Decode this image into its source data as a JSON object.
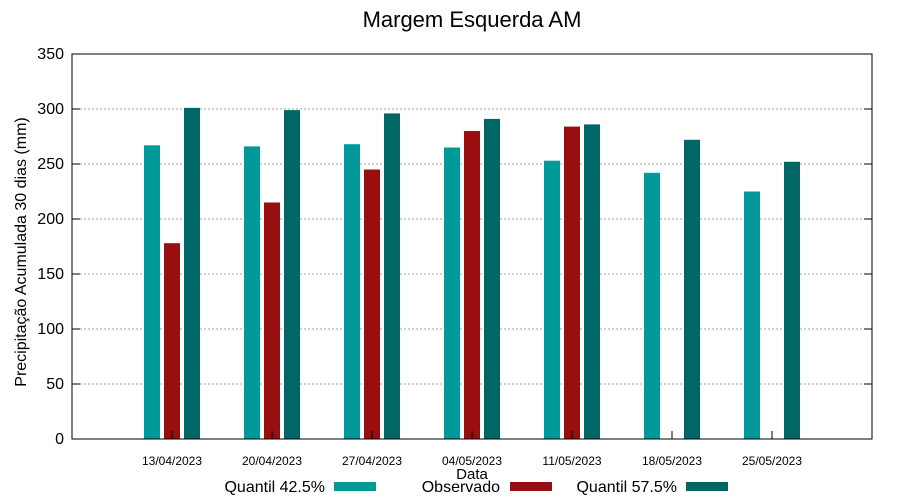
{
  "chart_data": {
    "type": "bar",
    "title": "Margem Esquerda AM",
    "xlabel": "Data",
    "ylabel": "Precipitação Acumulada 30 dias (mm)",
    "ylim": [
      0,
      350
    ],
    "yticks": [
      "0",
      "50",
      "100",
      "150",
      "200",
      "250",
      "300",
      "350"
    ],
    "grid": true,
    "legend_position": "bottom",
    "categories": [
      "13/04/2023",
      "20/04/2023",
      "27/04/2023",
      "04/05/2023",
      "11/05/2023",
      "18/05/2023",
      "25/05/2023"
    ],
    "series": [
      {
        "name": "Quantil 42.5%",
        "color": "#009999",
        "values": [
          267,
          266,
          268,
          265,
          253,
          242,
          225
        ]
      },
      {
        "name": "Observado",
        "color": "#990f0f",
        "values": [
          178,
          215,
          245,
          280,
          284,
          null,
          null
        ]
      },
      {
        "name": "Quantil 57.5%",
        "color": "#006666",
        "values": [
          301,
          299,
          296,
          291,
          286,
          272,
          252
        ]
      }
    ]
  }
}
